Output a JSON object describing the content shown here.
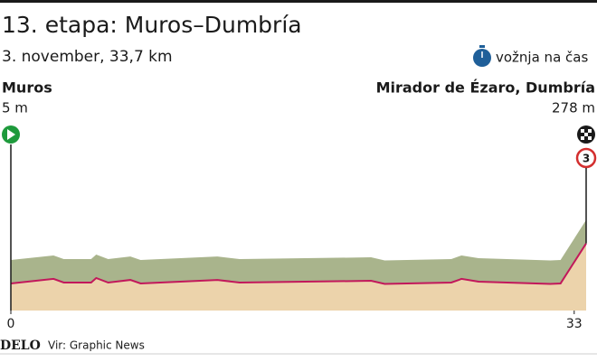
{
  "chart_data": {
    "type": "profile",
    "title": "13. etapa: Muros–Dumbría",
    "subtitle": "3. november, 33,7 km",
    "stage_type": "vožnja na čas",
    "start": {
      "name": "Muros",
      "elevation": {
        "value": 5,
        "label": "5 m"
      }
    },
    "finish": {
      "name": "Mirador de Ézaro, Dumbría",
      "elevation": {
        "value": 278,
        "label": "278 m"
      },
      "climb_category": "3"
    },
    "x": [
      0,
      2.5,
      3.1,
      4.7,
      5.0,
      5.7,
      7.0,
      7.6,
      12.1,
      13.4,
      21.1,
      21.9,
      25.8,
      26.4,
      27.4,
      31.6,
      32.2,
      33.7
    ],
    "values": [
      5,
      36,
      11,
      11,
      42,
      11,
      29,
      5,
      29,
      11,
      23,
      2,
      11,
      36,
      17,
      2,
      5,
      278
    ],
    "color": "#c2185b",
    "xlim": [
      0,
      33.7
    ],
    "xticks": [
      0,
      33
    ],
    "ylim": [
      -180,
      1200
    ],
    "footer": {
      "brand": "DELO",
      "source": "Vir: Graphic News"
    }
  }
}
